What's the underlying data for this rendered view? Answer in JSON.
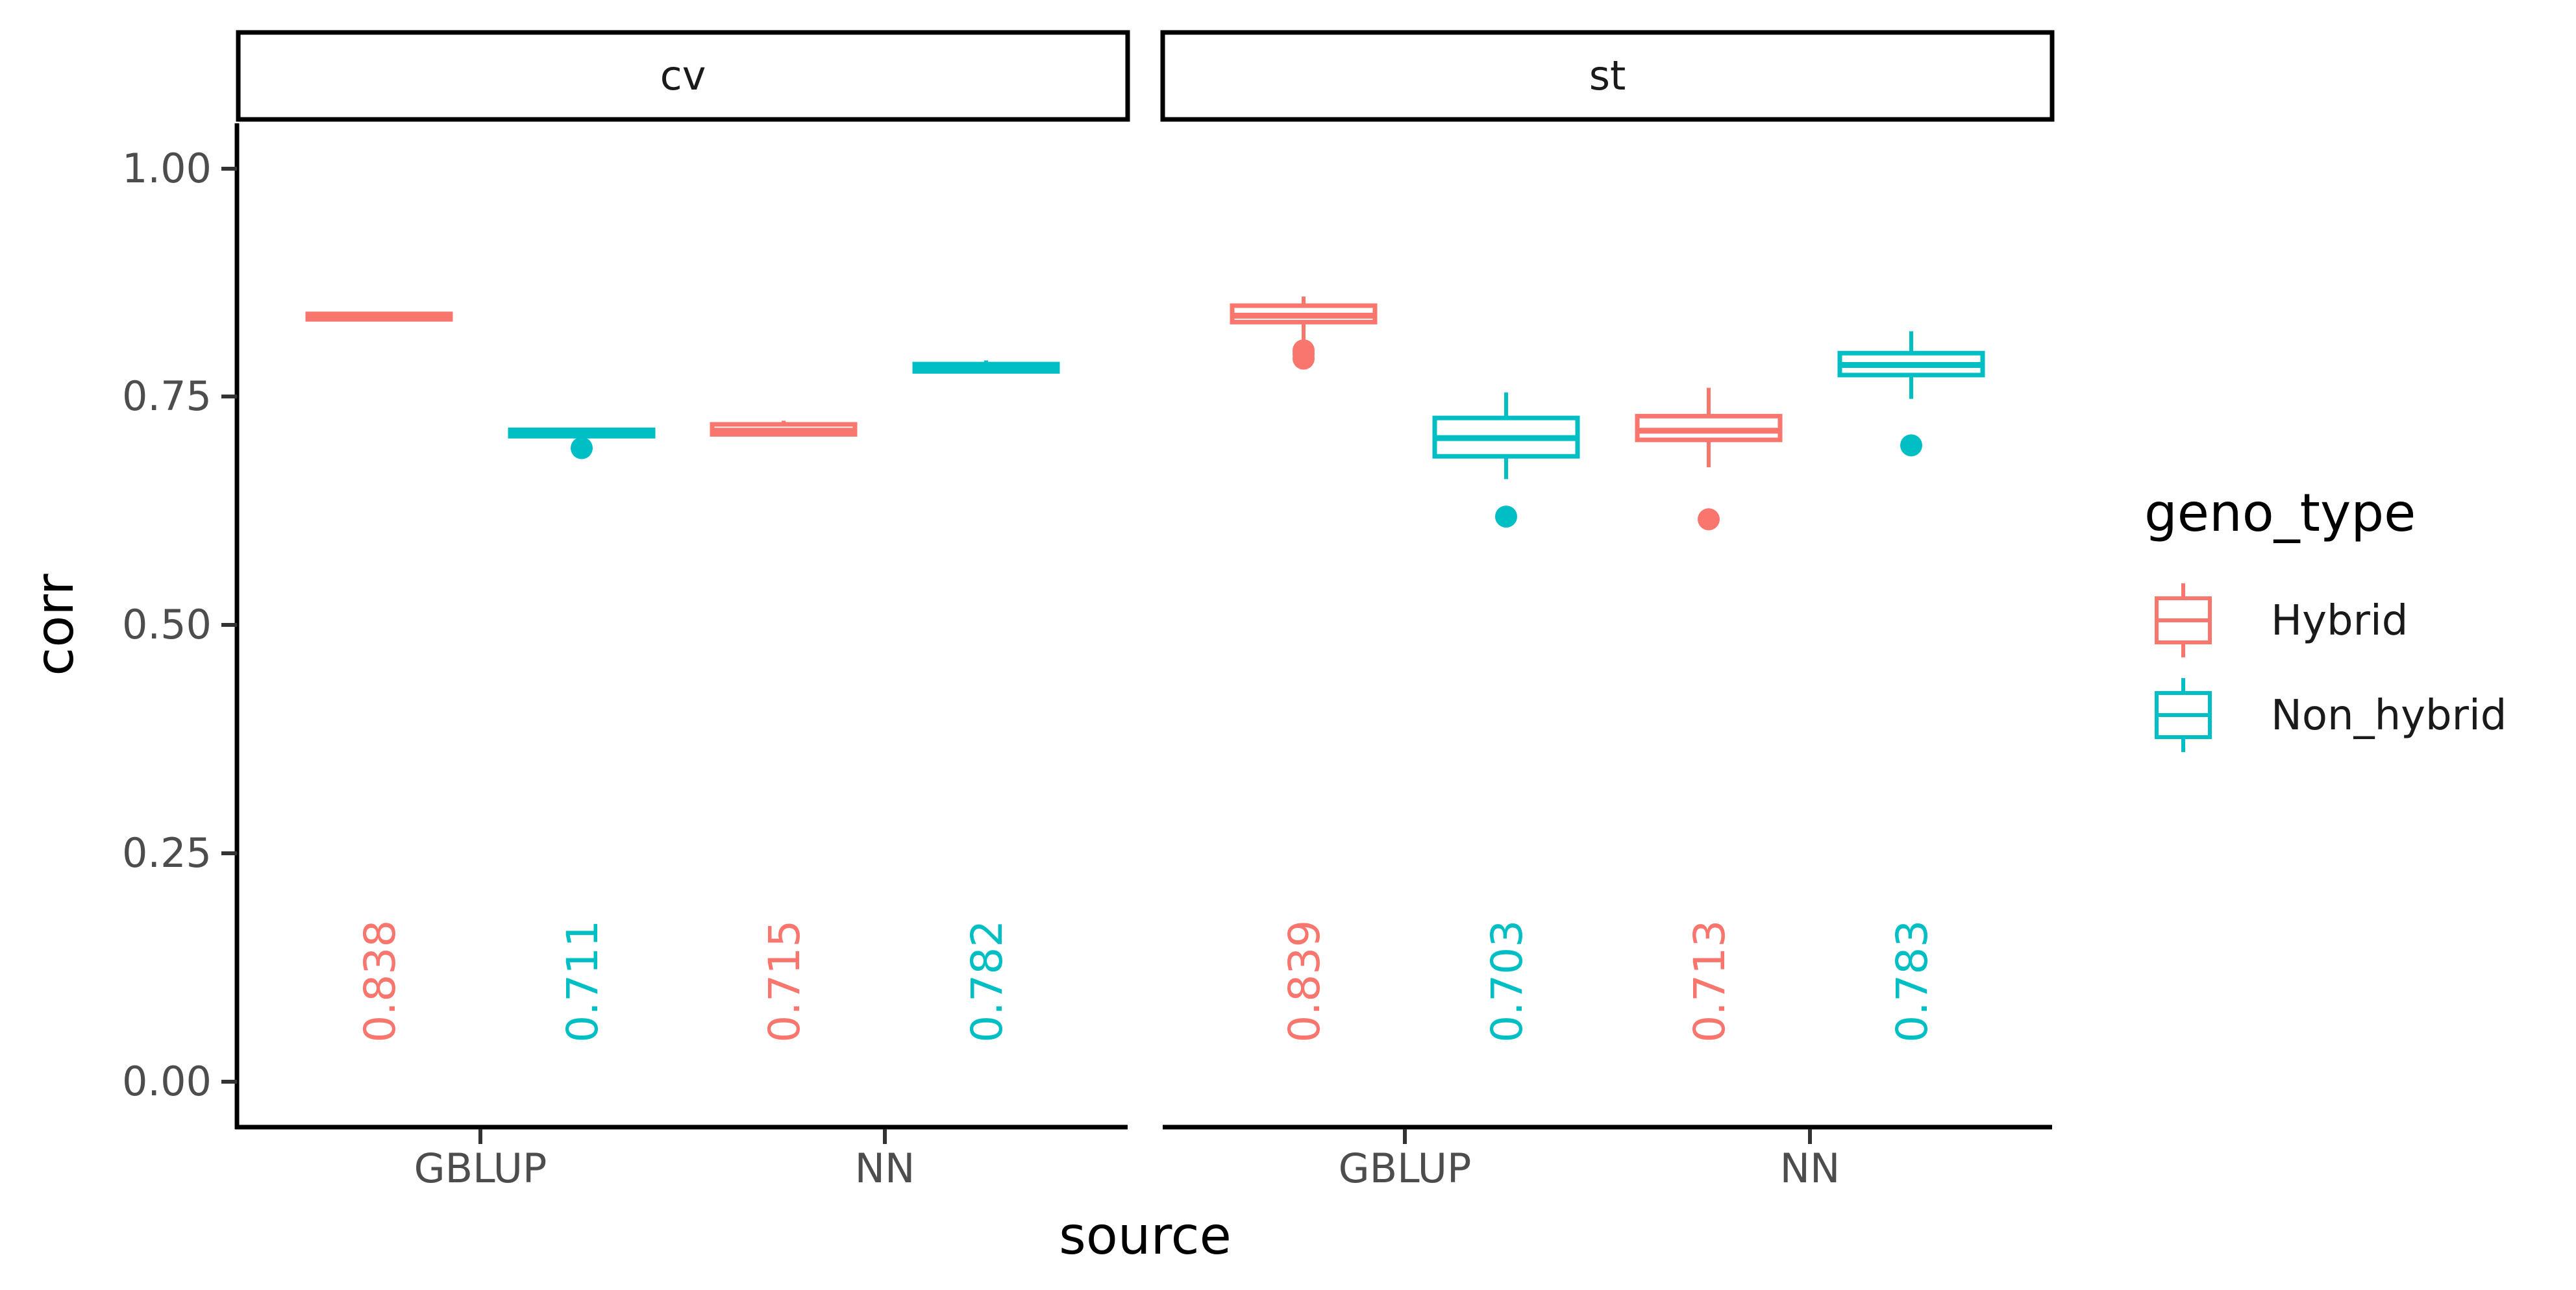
{
  "chart_data": {
    "type": "box",
    "facet_var": "source_type",
    "facets": [
      "cv",
      "st"
    ],
    "categories": [
      "GBLUP",
      "NN"
    ],
    "xlabel": "source",
    "ylabel": "corr",
    "ylim": [
      -0.05,
      1.05
    ],
    "yticks": [
      0.0,
      0.25,
      0.5,
      0.75,
      1.0
    ],
    "ytick_labels": [
      "0.00",
      "0.25",
      "0.50",
      "0.75",
      "1.00"
    ],
    "grid": false,
    "legend": {
      "title": "geno_type",
      "position": "right",
      "entries": [
        "Hybrid",
        "Non_hybrid"
      ]
    },
    "colors": {
      "Hybrid": "#F8766D",
      "Non_hybrid": "#00BFC4"
    },
    "series": [
      {
        "name": "Hybrid",
        "color": "#F8766D",
        "boxes": [
          {
            "facet": "cv",
            "category": "GBLUP",
            "min": 0.833,
            "q1": 0.835,
            "median": 0.838,
            "q3": 0.841,
            "max": 0.843,
            "outliers": [],
            "label": "0.838"
          },
          {
            "facet": "cv",
            "category": "NN",
            "min": 0.707,
            "q1": 0.709,
            "median": 0.713,
            "q3": 0.72,
            "max": 0.724,
            "outliers": [],
            "label": "0.715"
          },
          {
            "facet": "st",
            "category": "GBLUP",
            "min": 0.81,
            "q1": 0.832,
            "median": 0.839,
            "q3": 0.85,
            "max": 0.86,
            "outliers": [
              0.792,
              0.797,
              0.801
            ],
            "label": "0.839"
          },
          {
            "facet": "st",
            "category": "NN",
            "min": 0.673,
            "q1": 0.703,
            "median": 0.713,
            "q3": 0.729,
            "max": 0.76,
            "outliers": [
              0.616
            ],
            "label": "0.713"
          }
        ]
      },
      {
        "name": "Non_hybrid",
        "color": "#00BFC4",
        "boxes": [
          {
            "facet": "cv",
            "category": "GBLUP",
            "min": 0.705,
            "q1": 0.707,
            "median": 0.711,
            "q3": 0.714,
            "max": 0.716,
            "outliers": [
              0.694
            ],
            "label": "0.711"
          },
          {
            "facet": "cv",
            "category": "NN",
            "min": 0.776,
            "q1": 0.778,
            "median": 0.782,
            "q3": 0.786,
            "max": 0.79,
            "outliers": [],
            "label": "0.782"
          },
          {
            "facet": "st",
            "category": "GBLUP",
            "min": 0.66,
            "q1": 0.685,
            "median": 0.705,
            "q3": 0.727,
            "max": 0.755,
            "outliers": [
              0.619
            ],
            "label": "0.703"
          },
          {
            "facet": "st",
            "category": "NN",
            "min": 0.748,
            "q1": 0.774,
            "median": 0.785,
            "q3": 0.798,
            "max": 0.822,
            "outliers": [
              0.697
            ],
            "label": "0.783"
          }
        ]
      }
    ]
  }
}
